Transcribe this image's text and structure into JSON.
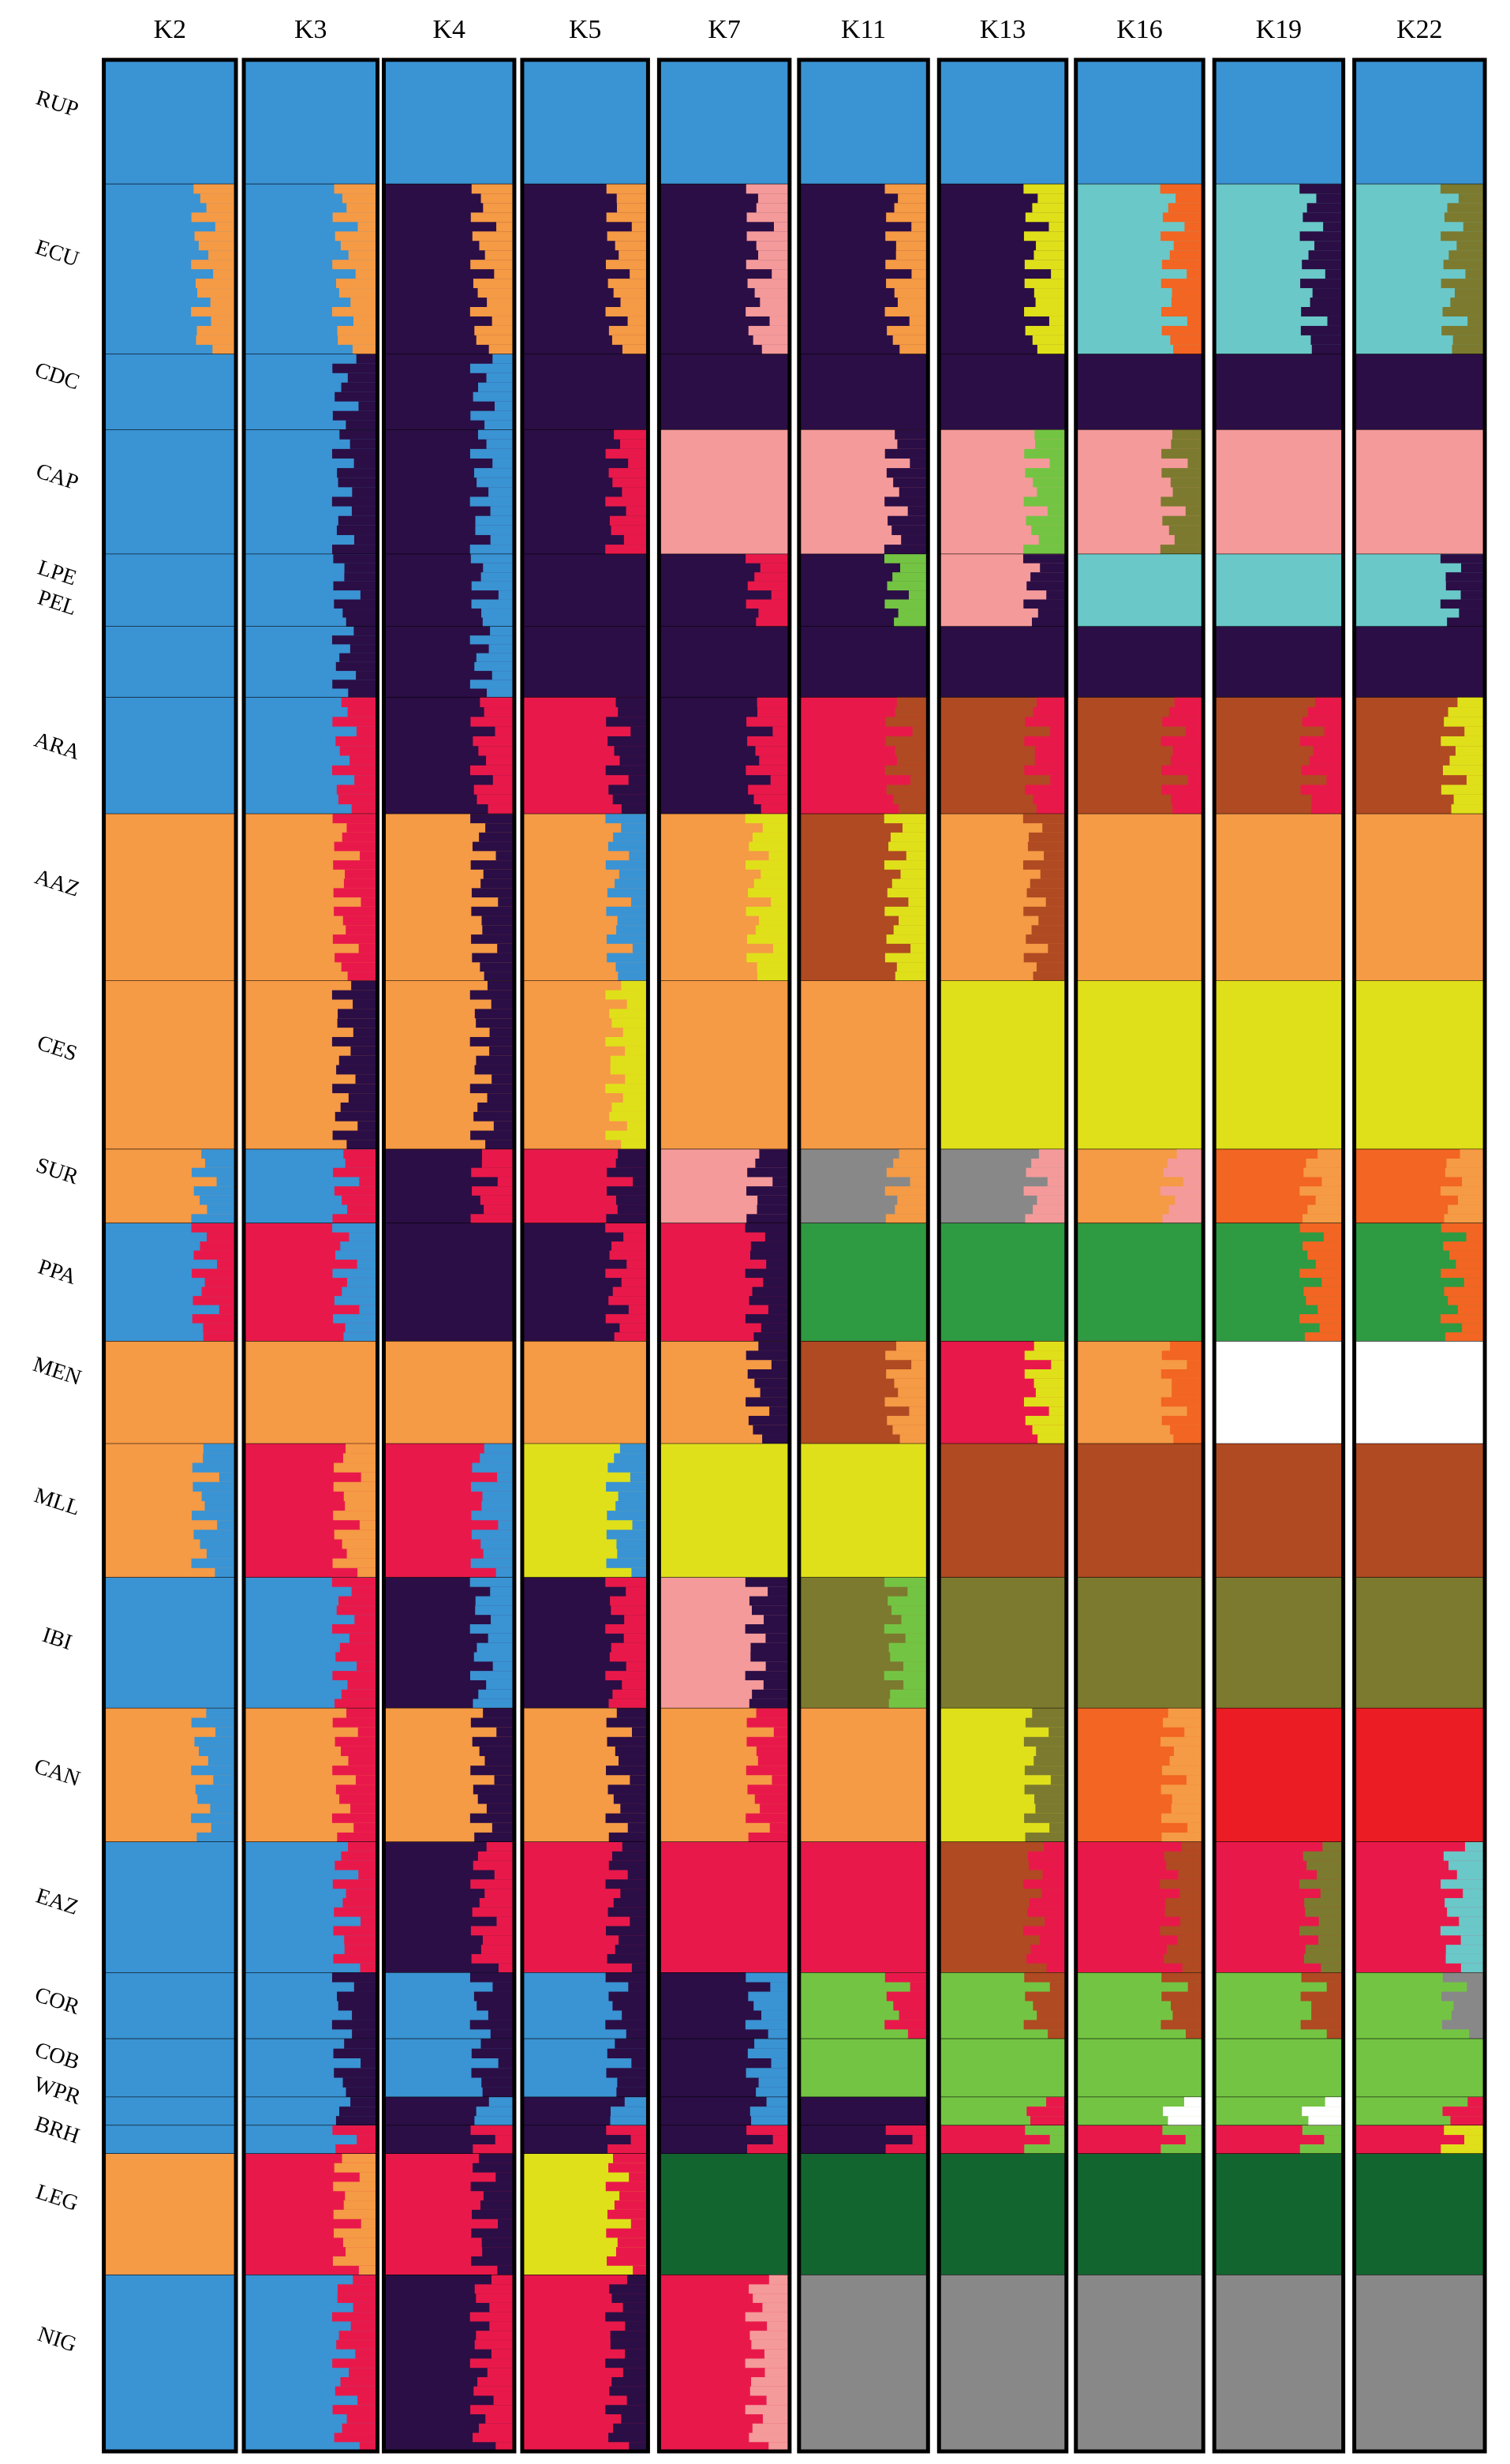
{
  "columns": [
    "K2",
    "K3",
    "K4",
    "K5",
    "K7",
    "K11",
    "K13",
    "K16",
    "K19",
    "K22"
  ],
  "populations": [
    "RUP",
    "ECU",
    "CDC",
    "CAP",
    "LPE",
    "PEL",
    "ARA",
    "AAZ",
    "CES",
    "SUR",
    "PPA",
    "MEN",
    "MLL",
    "IBI",
    "CAN",
    "EAZ",
    "COR",
    "COB",
    "WPR",
    "BRH",
    "LEG",
    "NIG"
  ]
}
